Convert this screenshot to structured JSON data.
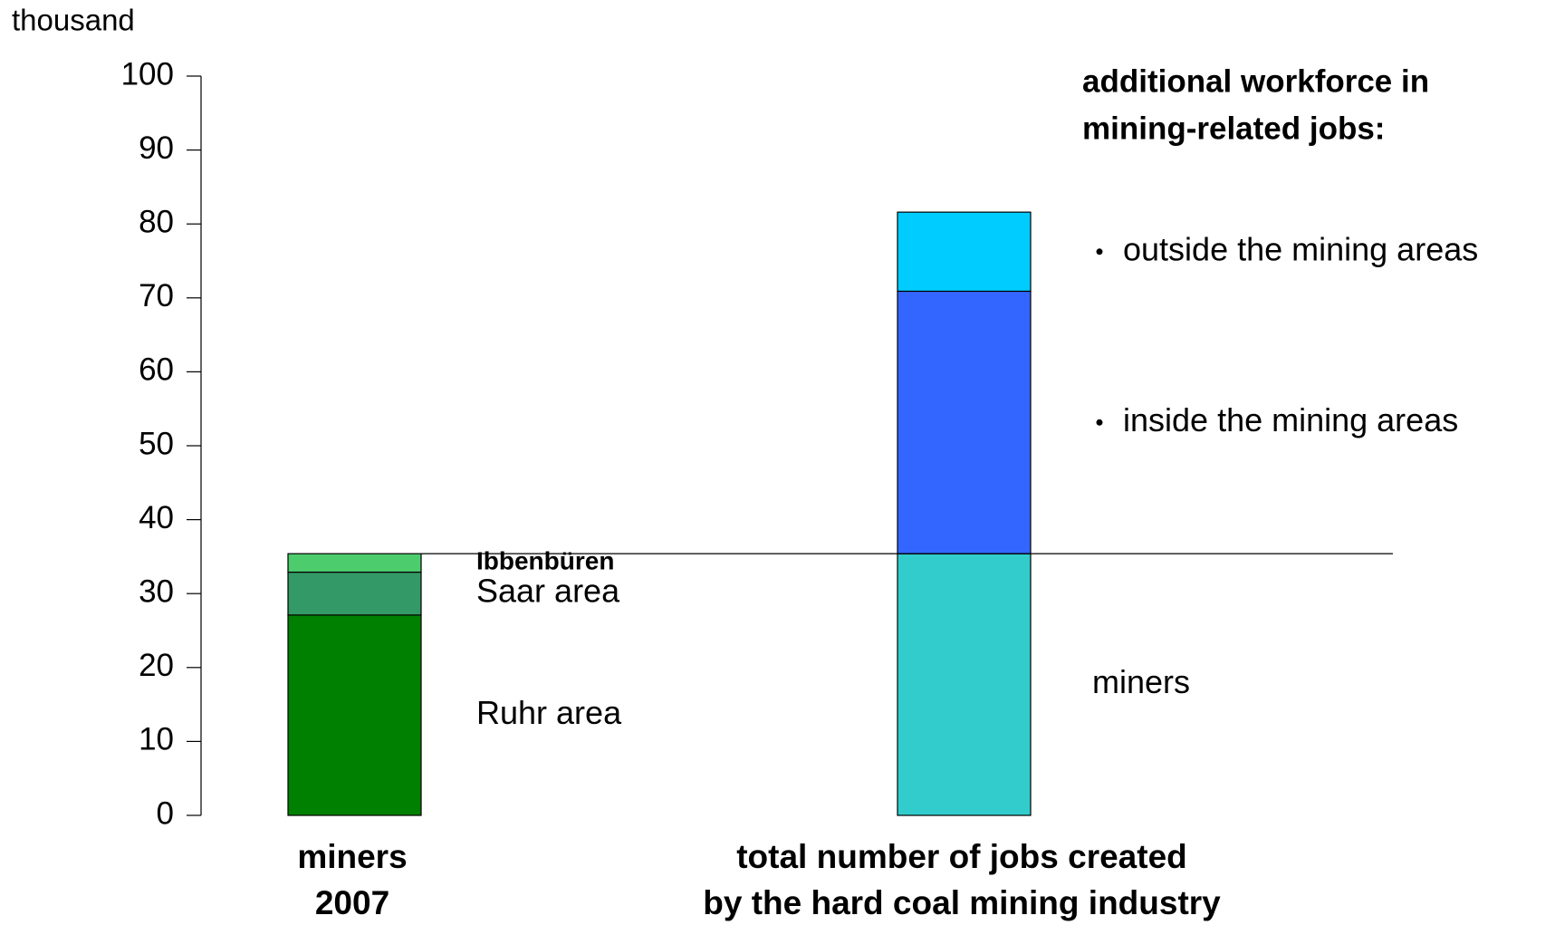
{
  "chart_data": {
    "type": "stacked-bar",
    "unit_label": "thousand",
    "annotation": [
      "additional workforce in",
      "mining-related jobs:"
    ],
    "categories": [
      "miners\n2007",
      "total number of jobs created\nby the hard coal mining industry"
    ],
    "series": [
      {
        "name": "Ruhr area",
        "color": "#008000",
        "values": [
          27.1,
          null
        ]
      },
      {
        "name": "Saar area",
        "color": "#339966",
        "values": [
          5.8,
          null
        ]
      },
      {
        "name": "Ibbenbüren",
        "color": "#4dcc6e",
        "values": [
          2.5,
          null
        ]
      },
      {
        "name": "miners",
        "color": "#33cccc",
        "values": [
          null,
          35.4
        ]
      },
      {
        "name": "inside the mining areas",
        "color": "#3366ff",
        "values": [
          null,
          35.5
        ]
      },
      {
        "name": "outside the mining areas",
        "color": "#00ccff",
        "values": [
          null,
          10.7
        ]
      }
    ],
    "ylim": [
      0,
      100
    ],
    "yticks": [
      0,
      10,
      20,
      30,
      40,
      50,
      60,
      70,
      80,
      90,
      100
    ]
  }
}
